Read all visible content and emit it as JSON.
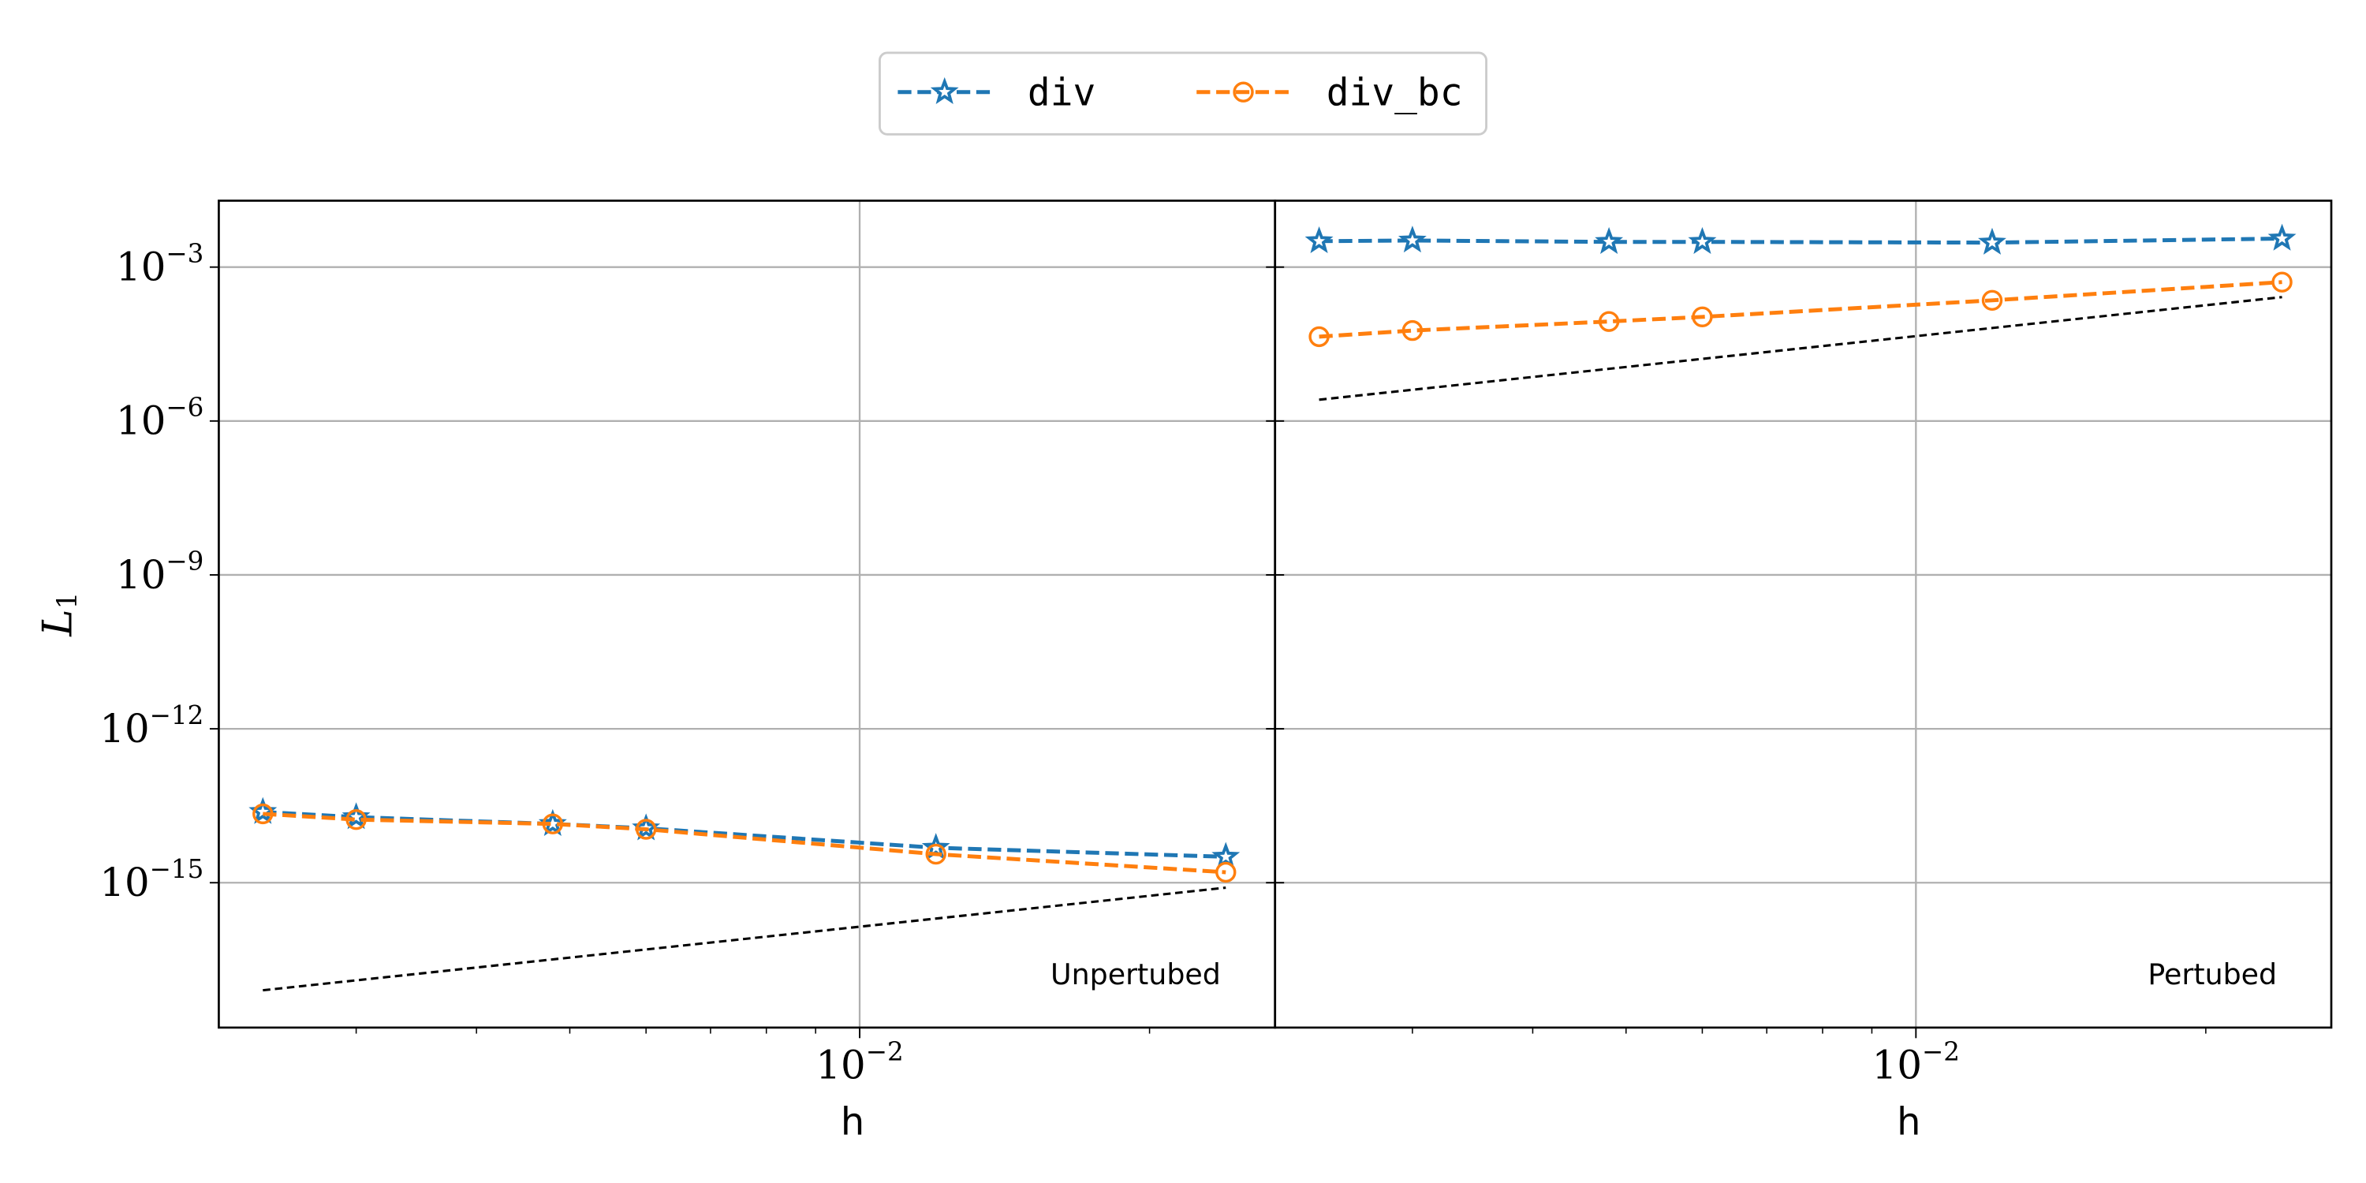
{
  "chart_data": [
    {
      "type": "line",
      "log_x": true,
      "log_y": true,
      "grid": true,
      "xlabel": "h",
      "ylabel": "L1",
      "annotation": "Unpertubed",
      "xlim": [
        0.00216,
        0.027
      ],
      "ylim": [
        1.5e-18,
        0.0197
      ],
      "xticks": [
        {
          "value": 0.01,
          "label": "10^-2"
        }
      ],
      "xminorticks": [
        0.003,
        0.004,
        0.005,
        0.006,
        0.007,
        0.008,
        0.009,
        0.02
      ],
      "yticks": [
        {
          "value": 1e-15,
          "label": "10^-15"
        },
        {
          "value": 1e-12,
          "label": "10^-12"
        },
        {
          "value": 1e-09,
          "label": "10^-9"
        },
        {
          "value": 1e-06,
          "label": "10^-6"
        },
        {
          "value": 0.001,
          "label": "10^-3"
        }
      ],
      "x": [
        0.0024,
        0.003,
        0.0048,
        0.006,
        0.012,
        0.024
      ],
      "series": [
        {
          "name": "div",
          "color": "#1f77b4",
          "marker": "star",
          "values": [
            2.4e-14,
            1.9e-14,
            1.4e-14,
            1.15e-14,
            4.8e-15,
            3.2e-15
          ]
        },
        {
          "name": "div_bc",
          "color": "#ff7f0e",
          "marker": "circle",
          "values": [
            2.2e-14,
            1.7e-14,
            1.4e-14,
            1.1e-14,
            3.6e-15,
            1.6e-15
          ]
        }
      ],
      "reference": {
        "color": "#000000",
        "x": [
          0.0024,
          0.024
        ],
        "values": [
          8e-18,
          8e-16
        ]
      }
    },
    {
      "type": "line",
      "log_x": true,
      "log_y": true,
      "grid": true,
      "xlabel": "h",
      "annotation": "Pertubed",
      "xlim": [
        0.00216,
        0.027
      ],
      "ylim": [
        1.5e-18,
        0.0197
      ],
      "xticks": [
        {
          "value": 0.01,
          "label": "10^-2"
        }
      ],
      "xminorticks": [
        0.003,
        0.004,
        0.005,
        0.006,
        0.007,
        0.008,
        0.009,
        0.02
      ],
      "yticks": [
        1e-15,
        1e-12,
        1e-09,
        1e-06,
        0.001
      ],
      "x": [
        0.0024,
        0.003,
        0.0048,
        0.006,
        0.012,
        0.024
      ],
      "series": [
        {
          "color": "#1f77b4",
          "marker": "star",
          "values": [
            0.0032,
            0.0033,
            0.0031,
            0.0031,
            0.003,
            0.0036
          ]
        },
        {
          "color": "#ff7f0e",
          "marker": "circle",
          "values": [
            4.4e-05,
            5.8e-05,
            8.7e-05,
            0.000107,
            0.000225,
            0.00051
          ]
        }
      ],
      "reference": {
        "color": "#000000",
        "x": [
          0.0024,
          0.024
        ],
        "values": [
          2.6e-06,
          0.00026
        ]
      }
    }
  ]
}
